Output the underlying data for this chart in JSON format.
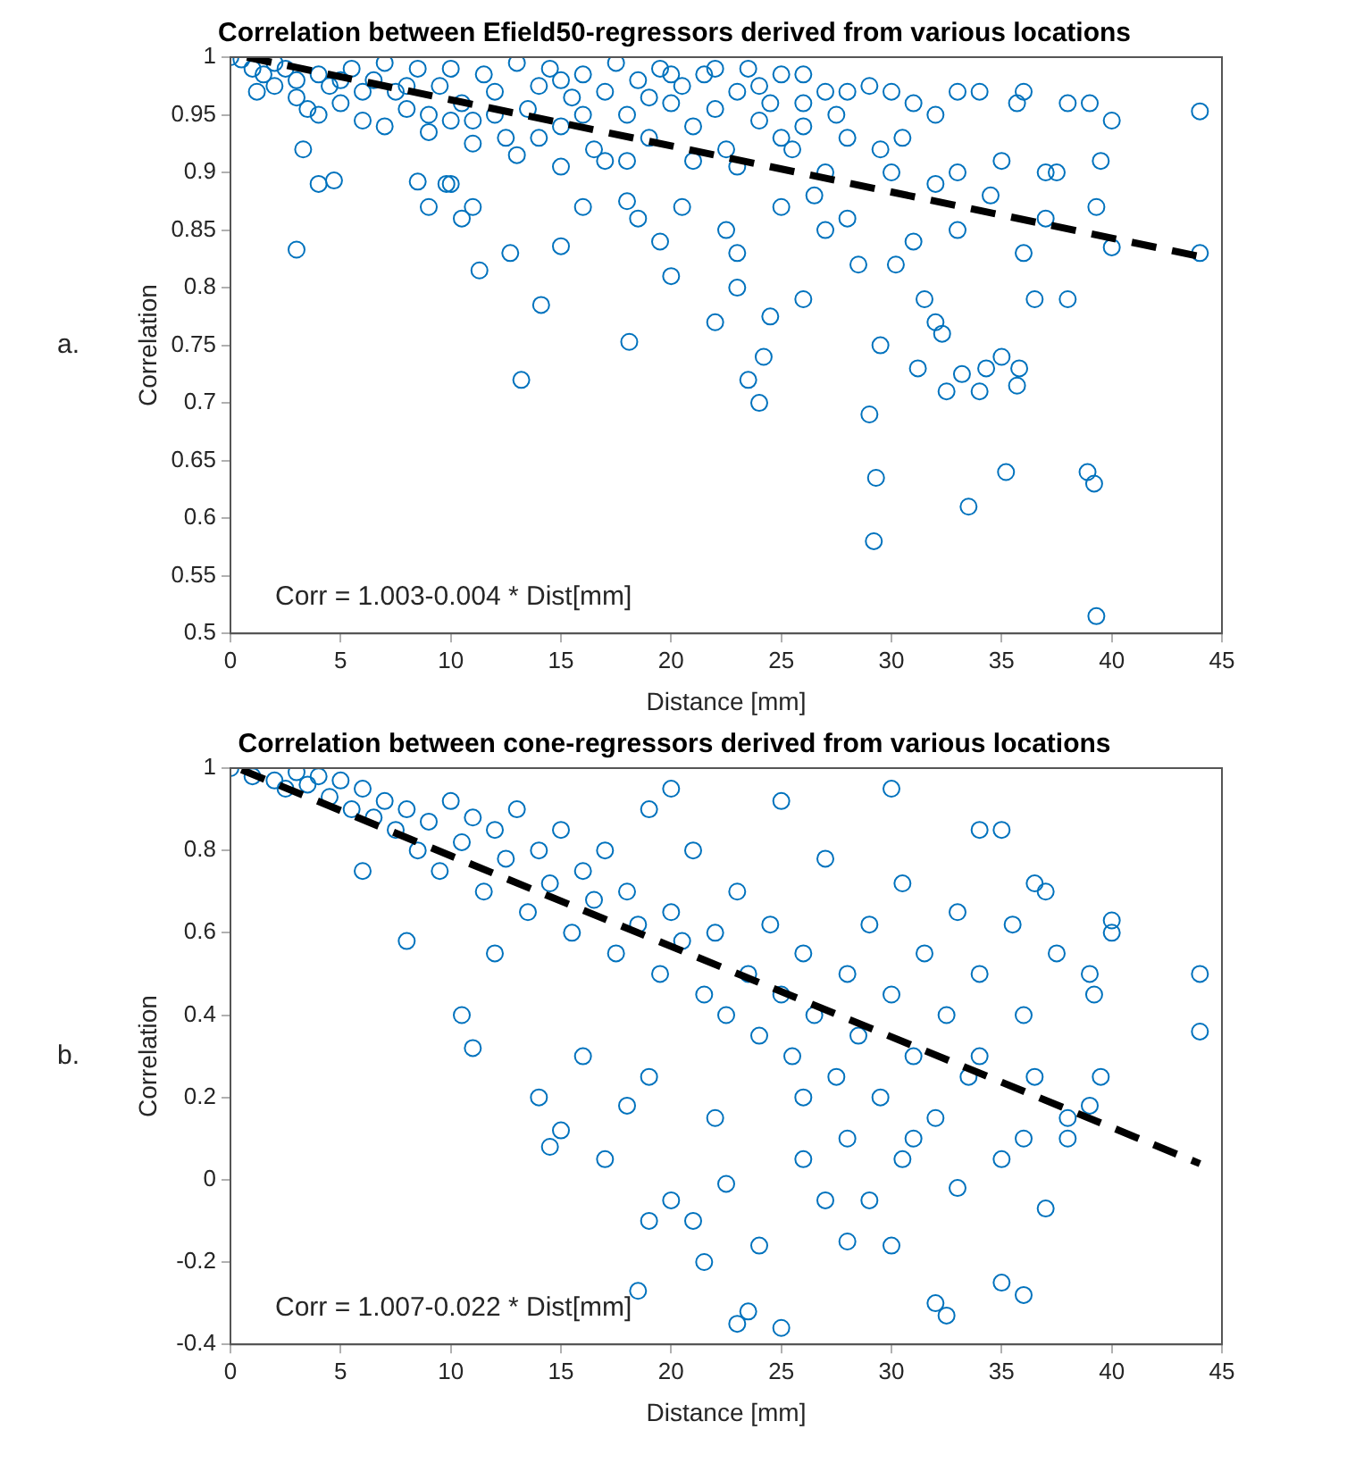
{
  "chart_data": [
    {
      "type": "scatter",
      "title": "Correlation between Efield50-regressors derived from various locations",
      "xlabel": "Distance [mm]",
      "ylabel": "Correlation",
      "annotations": [
        "a.",
        "Corr = 1.003-0.004 * Dist[mm]"
      ],
      "xlim": [
        0,
        45
      ],
      "xticks": [
        0,
        5,
        10,
        15,
        20,
        25,
        30,
        35,
        40,
        45
      ],
      "ylim": [
        0.5,
        1
      ],
      "yticks": [
        0.5,
        0.55,
        0.6,
        0.65,
        0.7,
        0.75,
        0.8,
        0.85,
        0.9,
        0.95,
        1
      ],
      "grid": false,
      "legend": false,
      "marker": "circle",
      "series": [
        {
          "color": "#0072bd",
          "x": [
            0,
            0.5,
            1,
            1.5,
            2,
            2.5,
            3,
            3.5,
            4,
            4.5,
            5,
            5.5,
            6,
            6.5,
            7,
            7.5,
            8,
            8.5,
            9,
            9.5,
            10,
            10.5,
            11,
            11.5,
            12,
            12.5,
            13,
            13.5,
            14,
            14.5,
            15,
            15.5,
            16,
            16.5,
            17,
            17.5,
            18,
            18.5,
            19,
            19.5,
            20,
            20.5,
            21,
            21.5,
            22,
            22.5,
            23,
            23.5,
            24,
            24.5,
            25,
            26,
            27.5,
            21,
            17,
            13,
            9,
            6,
            3,
            11,
            19,
            23,
            15,
            7,
            5,
            2,
            16,
            20,
            12,
            8,
            14,
            18,
            22,
            24,
            26,
            1.2,
            4,
            10,
            3,
            3.3,
            4,
            4.7,
            8.5,
            9.8,
            10,
            9,
            10.5,
            11.3,
            11,
            12.7,
            13.2,
            14.1,
            15,
            15,
            16,
            18,
            18.1,
            18.5,
            19.5,
            20,
            20.5,
            22,
            22.5,
            23,
            23,
            23.5,
            24,
            24.2,
            24.5,
            25,
            26,
            27,
            28,
            28.5,
            29,
            29.3,
            29.2,
            29.5,
            30,
            30.2,
            31,
            31.2,
            31.5,
            32,
            32.3,
            32.5,
            33,
            33.2,
            33.5,
            34,
            34.3,
            35,
            35.2,
            35.7,
            35.8,
            36,
            36.5,
            37,
            37.5,
            38,
            38.9,
            39.2,
            39.3,
            39.5,
            39.3,
            40,
            40,
            39,
            38,
            36,
            35.7,
            34,
            33,
            32,
            31,
            30,
            29,
            28,
            27,
            25,
            44,
            44,
            37,
            35,
            34.5,
            33,
            32,
            30.5,
            29.5,
            28,
            26,
            25.5,
            27,
            26.5
          ],
          "values": [
            1,
            0.998,
            0.99,
            0.985,
            0.975,
            0.99,
            0.965,
            0.955,
            0.985,
            0.975,
            0.96,
            0.99,
            0.945,
            0.98,
            0.995,
            0.97,
            0.955,
            0.99,
            0.935,
            0.975,
            0.99,
            0.96,
            0.945,
            0.985,
            0.97,
            0.93,
            0.995,
            0.955,
            0.975,
            0.99,
            0.94,
            0.965,
            0.985,
            0.92,
            0.97,
            0.995,
            0.95,
            0.98,
            0.93,
            0.99,
            0.96,
            0.975,
            0.94,
            0.985,
            0.955,
            0.92,
            0.97,
            0.99,
            0.945,
            0.96,
            0.93,
            0.96,
            0.95,
            0.91,
            0.91,
            0.915,
            0.95,
            0.97,
            0.98,
            0.925,
            0.965,
            0.905,
            0.98,
            0.94,
            0.98,
            0.995,
            0.95,
            0.985,
            0.95,
            0.975,
            0.93,
            0.91,
            0.99,
            0.975,
            0.985,
            0.97,
            0.95,
            0.945,
            0.833,
            0.92,
            0.89,
            0.893,
            0.892,
            0.89,
            0.89,
            0.87,
            0.86,
            0.815,
            0.87,
            0.83,
            0.72,
            0.785,
            0.836,
            0.905,
            0.87,
            0.875,
            0.753,
            0.86,
            0.84,
            0.81,
            0.87,
            0.77,
            0.85,
            0.8,
            0.83,
            0.72,
            0.7,
            0.74,
            0.775,
            0.87,
            0.79,
            0.85,
            0.86,
            0.82,
            0.69,
            0.635,
            0.58,
            0.75,
            0.9,
            0.82,
            0.84,
            0.73,
            0.79,
            0.77,
            0.76,
            0.71,
            0.85,
            0.725,
            0.61,
            0.71,
            0.73,
            0.74,
            0.64,
            0.715,
            0.73,
            0.83,
            0.79,
            0.86,
            0.9,
            0.79,
            0.64,
            0.63,
            0.515,
            0.91,
            0.87,
            0.835,
            0.945,
            0.96,
            0.96,
            0.97,
            0.96,
            0.97,
            0.97,
            0.95,
            0.96,
            0.97,
            0.975,
            0.97,
            0.97,
            0.985,
            0.953,
            0.83,
            0.9,
            0.91,
            0.88,
            0.9,
            0.89,
            0.93,
            0.92,
            0.93,
            0.94,
            0.92,
            0.9,
            0.88
          ]
        },
        {
          "type": "line",
          "color": "#000000",
          "line_style": "dashed",
          "marker": "none",
          "x": [
            0.75,
            44
          ],
          "values": [
            1,
            0.827
          ]
        }
      ]
    },
    {
      "type": "scatter",
      "title": "Correlation between cone-regressors derived from various locations",
      "xlabel": "Distance [mm]",
      "ylabel": "Correlation",
      "annotations": [
        "b.",
        "Corr = 1.007-0.022 * Dist[mm]"
      ],
      "xlim": [
        0,
        45
      ],
      "xticks": [
        0,
        5,
        10,
        15,
        20,
        25,
        30,
        35,
        40,
        45
      ],
      "ylim": [
        -0.4,
        1
      ],
      "yticks": [
        -0.4,
        -0.2,
        0,
        0.2,
        0.4,
        0.6,
        0.8,
        1
      ],
      "grid": false,
      "legend": false,
      "marker": "circle",
      "series": [
        {
          "color": "#0072bd",
          "x": [
            0,
            1,
            2,
            2.5,
            3,
            3.5,
            4,
            4.5,
            5,
            5.5,
            6,
            6.5,
            7,
            7.5,
            8,
            8.5,
            9,
            9.5,
            10,
            10.5,
            11,
            11.5,
            12,
            12.5,
            13,
            13.5,
            14,
            14.5,
            15,
            15.5,
            16,
            16.5,
            17,
            17.5,
            18,
            18.5,
            19,
            19.5,
            20,
            20.5,
            21,
            21.5,
            22,
            22.5,
            23,
            23.5,
            24,
            24.5,
            25,
            25.5,
            26,
            26.5,
            27,
            27.5,
            28,
            28.5,
            29,
            29.5,
            30,
            30.5,
            31,
            31.5,
            32,
            32.5,
            33,
            33.5,
            34,
            35,
            35.5,
            36,
            36.5,
            37,
            37.5,
            38,
            39,
            39.2,
            39.5,
            40,
            40,
            44,
            44,
            36.5,
            34,
            30,
            25,
            20,
            6,
            8,
            10.5,
            11,
            14,
            14.5,
            15,
            17,
            18,
            18.5,
            19,
            20,
            21,
            21.5,
            22.5,
            23,
            23.5,
            24,
            25,
            26,
            27,
            28,
            29,
            30,
            31,
            32,
            32.5,
            33,
            34,
            35,
            36,
            37,
            38,
            39,
            12,
            16,
            19,
            22,
            26,
            28,
            30.5,
            35,
            36
          ],
          "values": [
            1,
            0.98,
            0.97,
            0.95,
            0.99,
            0.96,
            0.98,
            0.93,
            0.97,
            0.9,
            0.95,
            0.88,
            0.92,
            0.85,
            0.9,
            0.8,
            0.87,
            0.75,
            0.92,
            0.82,
            0.88,
            0.7,
            0.85,
            0.78,
            0.9,
            0.65,
            0.8,
            0.72,
            0.85,
            0.6,
            0.75,
            0.68,
            0.8,
            0.55,
            0.7,
            0.62,
            0.9,
            0.5,
            0.65,
            0.58,
            0.8,
            0.45,
            0.6,
            0.4,
            0.7,
            0.5,
            0.35,
            0.62,
            0.45,
            0.3,
            0.55,
            0.4,
            0.78,
            0.25,
            0.5,
            0.35,
            0.62,
            0.2,
            0.45,
            0.72,
            0.3,
            0.55,
            0.15,
            0.4,
            0.65,
            0.25,
            0.5,
            0.85,
            0.62,
            0.4,
            0.25,
            0.7,
            0.55,
            0.15,
            0.5,
            0.45,
            0.25,
            0.6,
            0.63,
            0.5,
            0.36,
            0.72,
            0.85,
            0.95,
            0.92,
            0.95,
            0.75,
            0.58,
            0.4,
            0.32,
            0.2,
            0.08,
            0.12,
            0.05,
            0.18,
            -0.27,
            -0.1,
            -0.05,
            -0.1,
            -0.2,
            -0.01,
            -0.35,
            -0.32,
            -0.16,
            -0.36,
            0.05,
            -0.05,
            -0.15,
            -0.05,
            -0.16,
            0.1,
            -0.3,
            -0.33,
            -0.02,
            0.3,
            -0.25,
            -0.28,
            -0.07,
            0.1,
            0.18,
            0.55,
            0.3,
            0.25,
            0.15,
            0.2,
            0.1,
            0.05,
            0.05,
            0.1
          ]
        },
        {
          "type": "line",
          "color": "#000000",
          "line_style": "dashed",
          "marker": "none",
          "x": [
            0.5,
            44
          ],
          "values": [
            0.996,
            0.039
          ]
        }
      ]
    }
  ]
}
